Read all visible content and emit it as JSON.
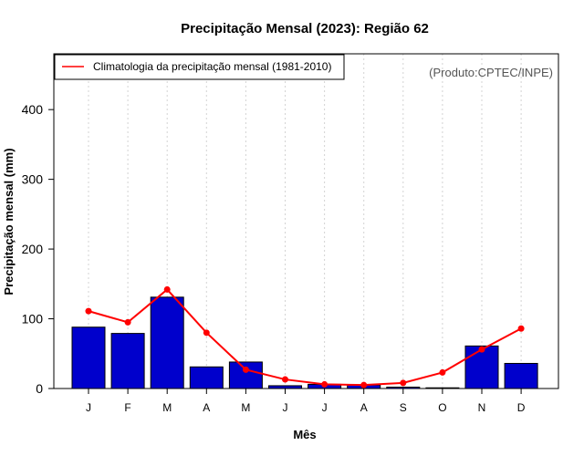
{
  "chart_data": {
    "type": "bar",
    "title": "Precipitação Mensal (2023): Região 62",
    "xlabel": "Mês",
    "ylabel": "Precipitação mensal (mm)",
    "categories": [
      "J",
      "F",
      "M",
      "A",
      "M",
      "J",
      "J",
      "A",
      "S",
      "O",
      "N",
      "D"
    ],
    "ylim": [
      0,
      480
    ],
    "yticks": [
      0,
      100,
      200,
      300,
      400
    ],
    "grid": "vertical-dotted",
    "series": [
      {
        "name": "Precipitação mensal (2023)",
        "type": "bar",
        "color": "#0000cc",
        "values": [
          88,
          79,
          131,
          31,
          38,
          4,
          6,
          5,
          2,
          1,
          61,
          36
        ]
      },
      {
        "name": "Climatologia da precipitação mensal (1981-2010)",
        "type": "line",
        "color": "#ff0000",
        "values": [
          111,
          95,
          142,
          80,
          27,
          13,
          6,
          5,
          8,
          23,
          56,
          86
        ]
      }
    ],
    "legend": {
      "position": "top-left",
      "label": "Climatologia da precipitação mensal (1981-2010)"
    },
    "credit": "(Produto:CPTEC/INPE)"
  }
}
